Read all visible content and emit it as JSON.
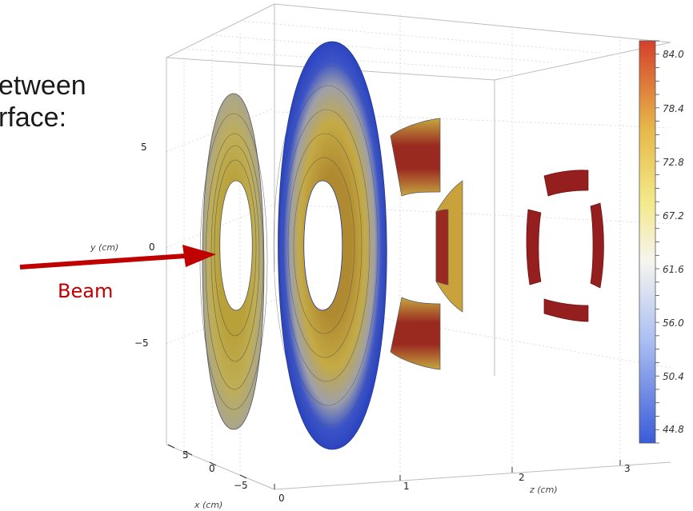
{
  "slide_text": {
    "line1": "etween",
    "line2": "rface:"
  },
  "beam": {
    "label": "Beam",
    "color": "#c00000"
  },
  "chart_data": {
    "type": "heatmap",
    "title": "",
    "x_axis": {
      "label": "x (cm)",
      "ticks": [
        "5",
        "0",
        "−5"
      ]
    },
    "y_axis": {
      "label": "y (cm)",
      "ticks": [
        "5",
        "0",
        "−5"
      ]
    },
    "z_axis": {
      "label": "z (cm)",
      "ticks": [
        "0",
        "1",
        "2",
        "3"
      ]
    },
    "colorbar": {
      "ticks": [
        "84.0",
        "78.4",
        "72.8",
        "67.2",
        "61.6",
        "56.0",
        "50.4",
        "44.8"
      ],
      "min": 44.8,
      "max": 84.0,
      "colors": [
        "#3a5bd8",
        "#a9bdf2",
        "#f5f5f0",
        "#f3e98a",
        "#e7b84a",
        "#d4402c"
      ]
    },
    "objects": [
      {
        "name": "ring-1",
        "z": 0.1,
        "shape": "annulus",
        "fill": "gray-olive contours"
      },
      {
        "name": "ring-2",
        "z": 0.45,
        "shape": "annulus",
        "fill": "blue outer rim, olive-red inner contours"
      },
      {
        "name": "segments-3",
        "z": 1.2,
        "shape": "4 arc segments",
        "fill": "yellow-red contours"
      },
      {
        "name": "segments-4",
        "z": 2.4,
        "shape": "4 arc segments",
        "fill": "dark red"
      }
    ],
    "grid": true
  }
}
